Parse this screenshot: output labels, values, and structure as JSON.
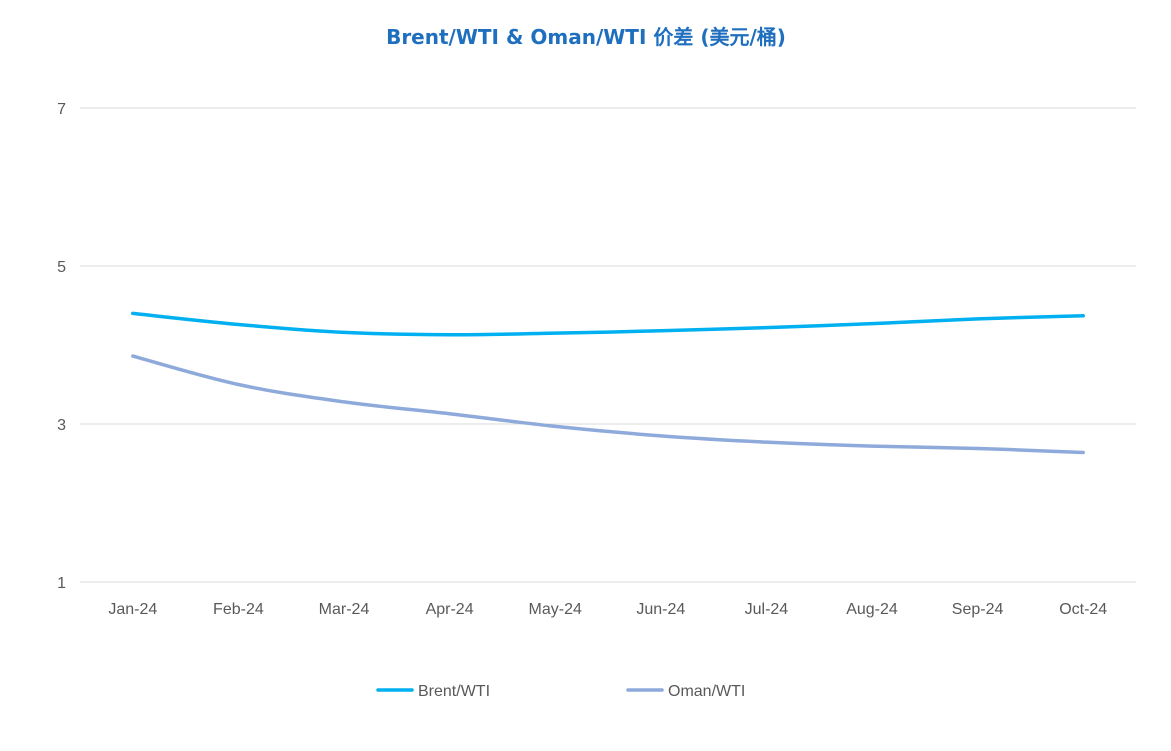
{
  "chart_data": {
    "type": "line",
    "title": "Brent/WTI & Oman/WTI 价差 (美元/桶)",
    "xlabel": "",
    "ylabel": "",
    "categories": [
      "Jan-24",
      "Feb-24",
      "Mar-24",
      "Apr-24",
      "May-24",
      "Jun-24",
      "Jul-24",
      "Aug-24",
      "Sep-24",
      "Oct-24"
    ],
    "ylim": [
      1,
      7
    ],
    "yticks": [
      "1",
      "3",
      "5",
      "7"
    ],
    "grid": true,
    "legend_position": "bottom",
    "series": [
      {
        "name": "Brent/WTI",
        "color": "#00b0f0",
        "values": [
          4.4,
          4.26,
          4.16,
          4.13,
          4.15,
          4.18,
          4.22,
          4.27,
          4.33,
          4.37
        ]
      },
      {
        "name": "Oman/WTI",
        "color": "#8eaadb",
        "values": [
          3.86,
          3.5,
          3.28,
          3.13,
          2.97,
          2.85,
          2.77,
          2.72,
          2.69,
          2.64
        ]
      }
    ]
  }
}
